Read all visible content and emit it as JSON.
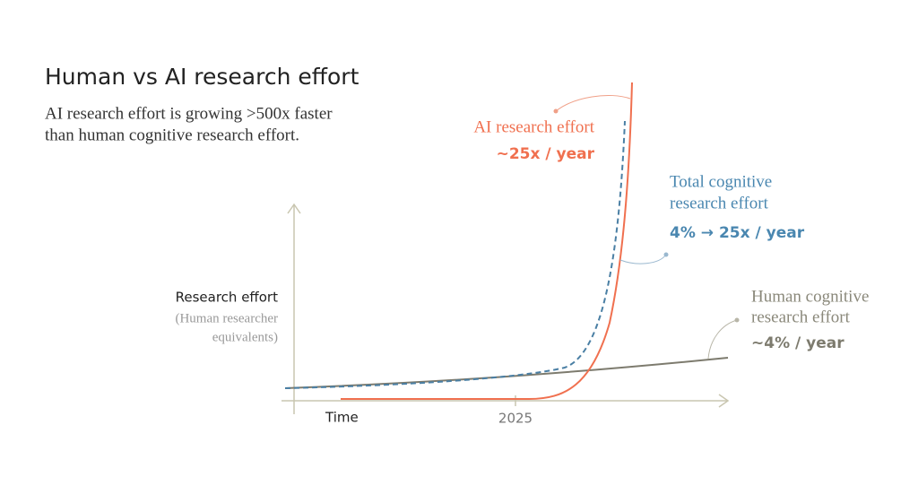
{
  "title": "Human vs AI research effort",
  "subtitle": [
    "AI research effort is growing >500x faster",
    "than human cognitive research effort."
  ],
  "y_axis": {
    "label": "Research effort",
    "sublabel": [
      "(Human researcher",
      "equivalents)"
    ]
  },
  "x_axis": {
    "label": "Time",
    "tick": "2025"
  },
  "annotations": {
    "ai": {
      "name": "AI research effort",
      "rate": "~25x / year"
    },
    "total": {
      "name": [
        "Total cognitive",
        "research effort"
      ],
      "rate": "4% → 25x / year"
    },
    "human": {
      "name": [
        "Human cognitive",
        "research effort"
      ],
      "rate": "~4% / year"
    }
  }
}
